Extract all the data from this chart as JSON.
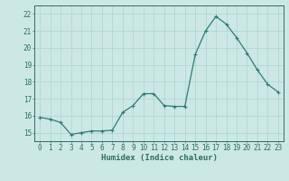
{
  "x": [
    0,
    1,
    2,
    3,
    4,
    5,
    6,
    7,
    8,
    9,
    10,
    11,
    12,
    13,
    14,
    15,
    16,
    17,
    18,
    19,
    20,
    21,
    22,
    23
  ],
  "y": [
    15.9,
    15.8,
    15.6,
    14.9,
    15.0,
    15.1,
    15.1,
    15.15,
    16.2,
    16.6,
    17.3,
    17.3,
    16.6,
    16.55,
    16.55,
    19.6,
    21.0,
    21.85,
    21.4,
    20.6,
    19.7,
    18.7,
    17.85,
    17.4
  ],
  "line_color": "#2e7d6e",
  "marker": "+",
  "marker_size": 3.5,
  "bg_color": "#cce8e4",
  "grid_color": "#aad4ce",
  "xlabel": "Humidex (Indice chaleur)",
  "ylim": [
    14.5,
    22.5
  ],
  "xlim": [
    -0.5,
    23.5
  ],
  "yticks": [
    15,
    16,
    17,
    18,
    19,
    20,
    21,
    22
  ],
  "xticks": [
    0,
    1,
    2,
    3,
    4,
    5,
    6,
    7,
    8,
    9,
    10,
    11,
    12,
    13,
    14,
    15,
    16,
    17,
    18,
    19,
    20,
    21,
    22,
    23
  ],
  "font_color": "#2e6e60",
  "tick_fontsize": 5.5,
  "label_fontsize": 6.5,
  "linewidth": 0.9
}
